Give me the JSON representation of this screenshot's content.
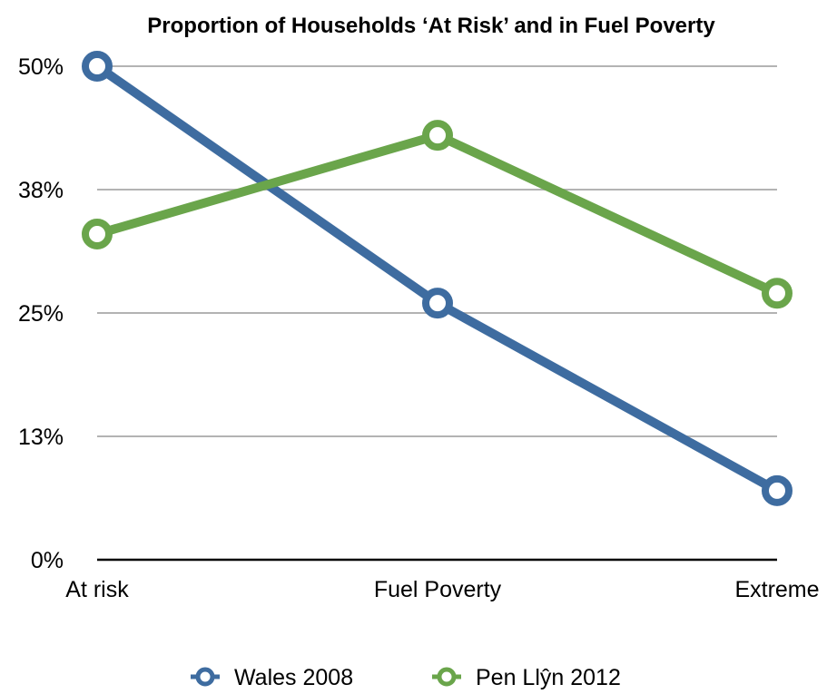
{
  "chart_data": {
    "type": "line",
    "title": "Proportion of Households ‘At Risk’ and in Fuel Poverty",
    "xlabel": "",
    "ylabel": "",
    "categories": [
      "At risk",
      "Fuel Poverty",
      "Extreme"
    ],
    "y_ticks": [
      0,
      12.5,
      25,
      37.5,
      50
    ],
    "y_tick_labels": [
      "0%",
      "13%",
      "25%",
      "38%",
      "50%"
    ],
    "ylim": [
      0,
      50
    ],
    "grid": true,
    "legend_position": "bottom",
    "series": [
      {
        "name": "Wales 2008",
        "values": [
          50,
          26,
          7
        ],
        "color": "#3E6CA0"
      },
      {
        "name": "Pen Llŷn 2012",
        "values": [
          33,
          43,
          27
        ],
        "color": "#6AA54B"
      }
    ]
  }
}
